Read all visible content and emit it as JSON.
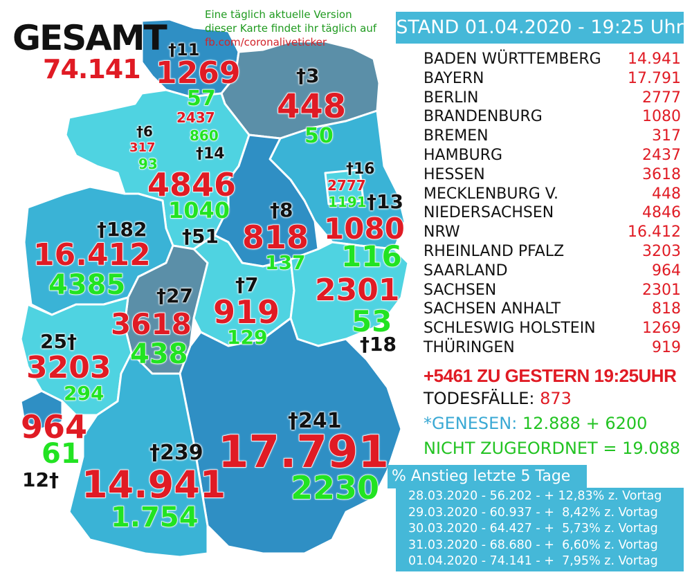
{
  "map": {
    "colors": {
      "dark": "#2f8fc4",
      "mid": "#3ab3d6",
      "light": "#4fd3e1",
      "slate": "#5b8fa8",
      "border": "#ffffff"
    },
    "gesamt_label": "GESAMT",
    "gesamt_value": "74.141",
    "note_lines": [
      "Eine täglich aktuelle Version",
      "dieser Karte findet ihr täglich auf",
      "fb.com/coronaliveticker"
    ],
    "regions": [
      {
        "id": "sh",
        "deaths": "†11",
        "cases": "1269",
        "recovered": "57"
      },
      {
        "id": "mv",
        "deaths": "†3",
        "cases": "448",
        "recovered": "50"
      },
      {
        "id": "hh",
        "cases": "2437",
        "recovered": "860"
      },
      {
        "id": "hb",
        "deaths": "†6",
        "cases": "317",
        "recovered": "93"
      },
      {
        "id": "ni",
        "deaths": "†14",
        "cases": "4846",
        "recovered": "1040"
      },
      {
        "id": "be",
        "deaths": "†16",
        "cases": "2777",
        "recovered": "1191"
      },
      {
        "id": "bb",
        "deaths": "†13",
        "cases": "1080",
        "recovered": "116"
      },
      {
        "id": "st",
        "deaths": "†8",
        "cases": "818",
        "recovered": "137"
      },
      {
        "id": "nw",
        "deaths": "†182",
        "cases": "16.412",
        "recovered": "4385"
      },
      {
        "id": "ni_s",
        "deaths": "†51"
      },
      {
        "id": "he",
        "deaths": "†27",
        "cases": "3618",
        "recovered": "438"
      },
      {
        "id": "th",
        "deaths": "†7",
        "cases": "919",
        "recovered": "129"
      },
      {
        "id": "sn",
        "deaths": "†18",
        "cases": "2301",
        "recovered": "53"
      },
      {
        "id": "rp",
        "deaths": "25†",
        "cases": "3203",
        "recovered": "294"
      },
      {
        "id": "sl",
        "deaths": "12†",
        "cases": "964",
        "recovered": "61"
      },
      {
        "id": "by",
        "deaths": "†241",
        "cases": "17.791",
        "recovered": "2230"
      },
      {
        "id": "bw",
        "deaths": "†239",
        "cases": "14.941",
        "recovered": "1.754"
      }
    ]
  },
  "panel": {
    "stand": "STAND 01.04.2020 - 19:25 Uhr",
    "states": [
      {
        "name": "BADEN WÜRTTEMBERG",
        "value": "14.941"
      },
      {
        "name": "BAYERN",
        "value": "17.791"
      },
      {
        "name": "BERLIN",
        "value": "2777"
      },
      {
        "name": "BRANDENBURG",
        "value": "1080"
      },
      {
        "name": "BREMEN",
        "value": "317"
      },
      {
        "name": "HAMBURG",
        "value": "2437"
      },
      {
        "name": "HESSEN",
        "value": "3618"
      },
      {
        "name": "MECKLENBURG V.",
        "value": "448"
      },
      {
        "name": "NIEDERSACHSEN",
        "value": "4846"
      },
      {
        "name": "NRW",
        "value": "16.412"
      },
      {
        "name": "RHEINLAND PFALZ",
        "value": "3203"
      },
      {
        "name": "SAARLAND",
        "value": "964"
      },
      {
        "name": "SACHSEN",
        "value": "2301"
      },
      {
        "name": "SACHSEN ANHALT",
        "value": "818"
      },
      {
        "name": "SCHLESWIG HOLSTEIN",
        "value": "1269"
      },
      {
        "name": "THÜRINGEN",
        "value": "919"
      }
    ],
    "plus": "+5461 ZU GESTERN 19:25UHR",
    "todes_label": "TODESFÄLLE:",
    "todes_value": "873",
    "genesen_label": "*GENESEN:",
    "genesen_value": "12.888 + 6200",
    "nicht": "NICHT ZUGEORDNET = 19.088",
    "anstieg_title": "% Anstieg letzte 5 Tage",
    "anstieg_rows": [
      "28.03.2020 - 56.202 - + 12,83% z. Vortag",
      "29.03.2020 - 60.937 - +  8,42% z. Vortag",
      "30.03.2020 - 64.427 - +  5,73% z. Vortag",
      "31.03.2020 - 68.680 - +  6,60% z. Vortag",
      "01.04.2020 - 74.141 - +  7,95% z. Vortag"
    ]
  }
}
